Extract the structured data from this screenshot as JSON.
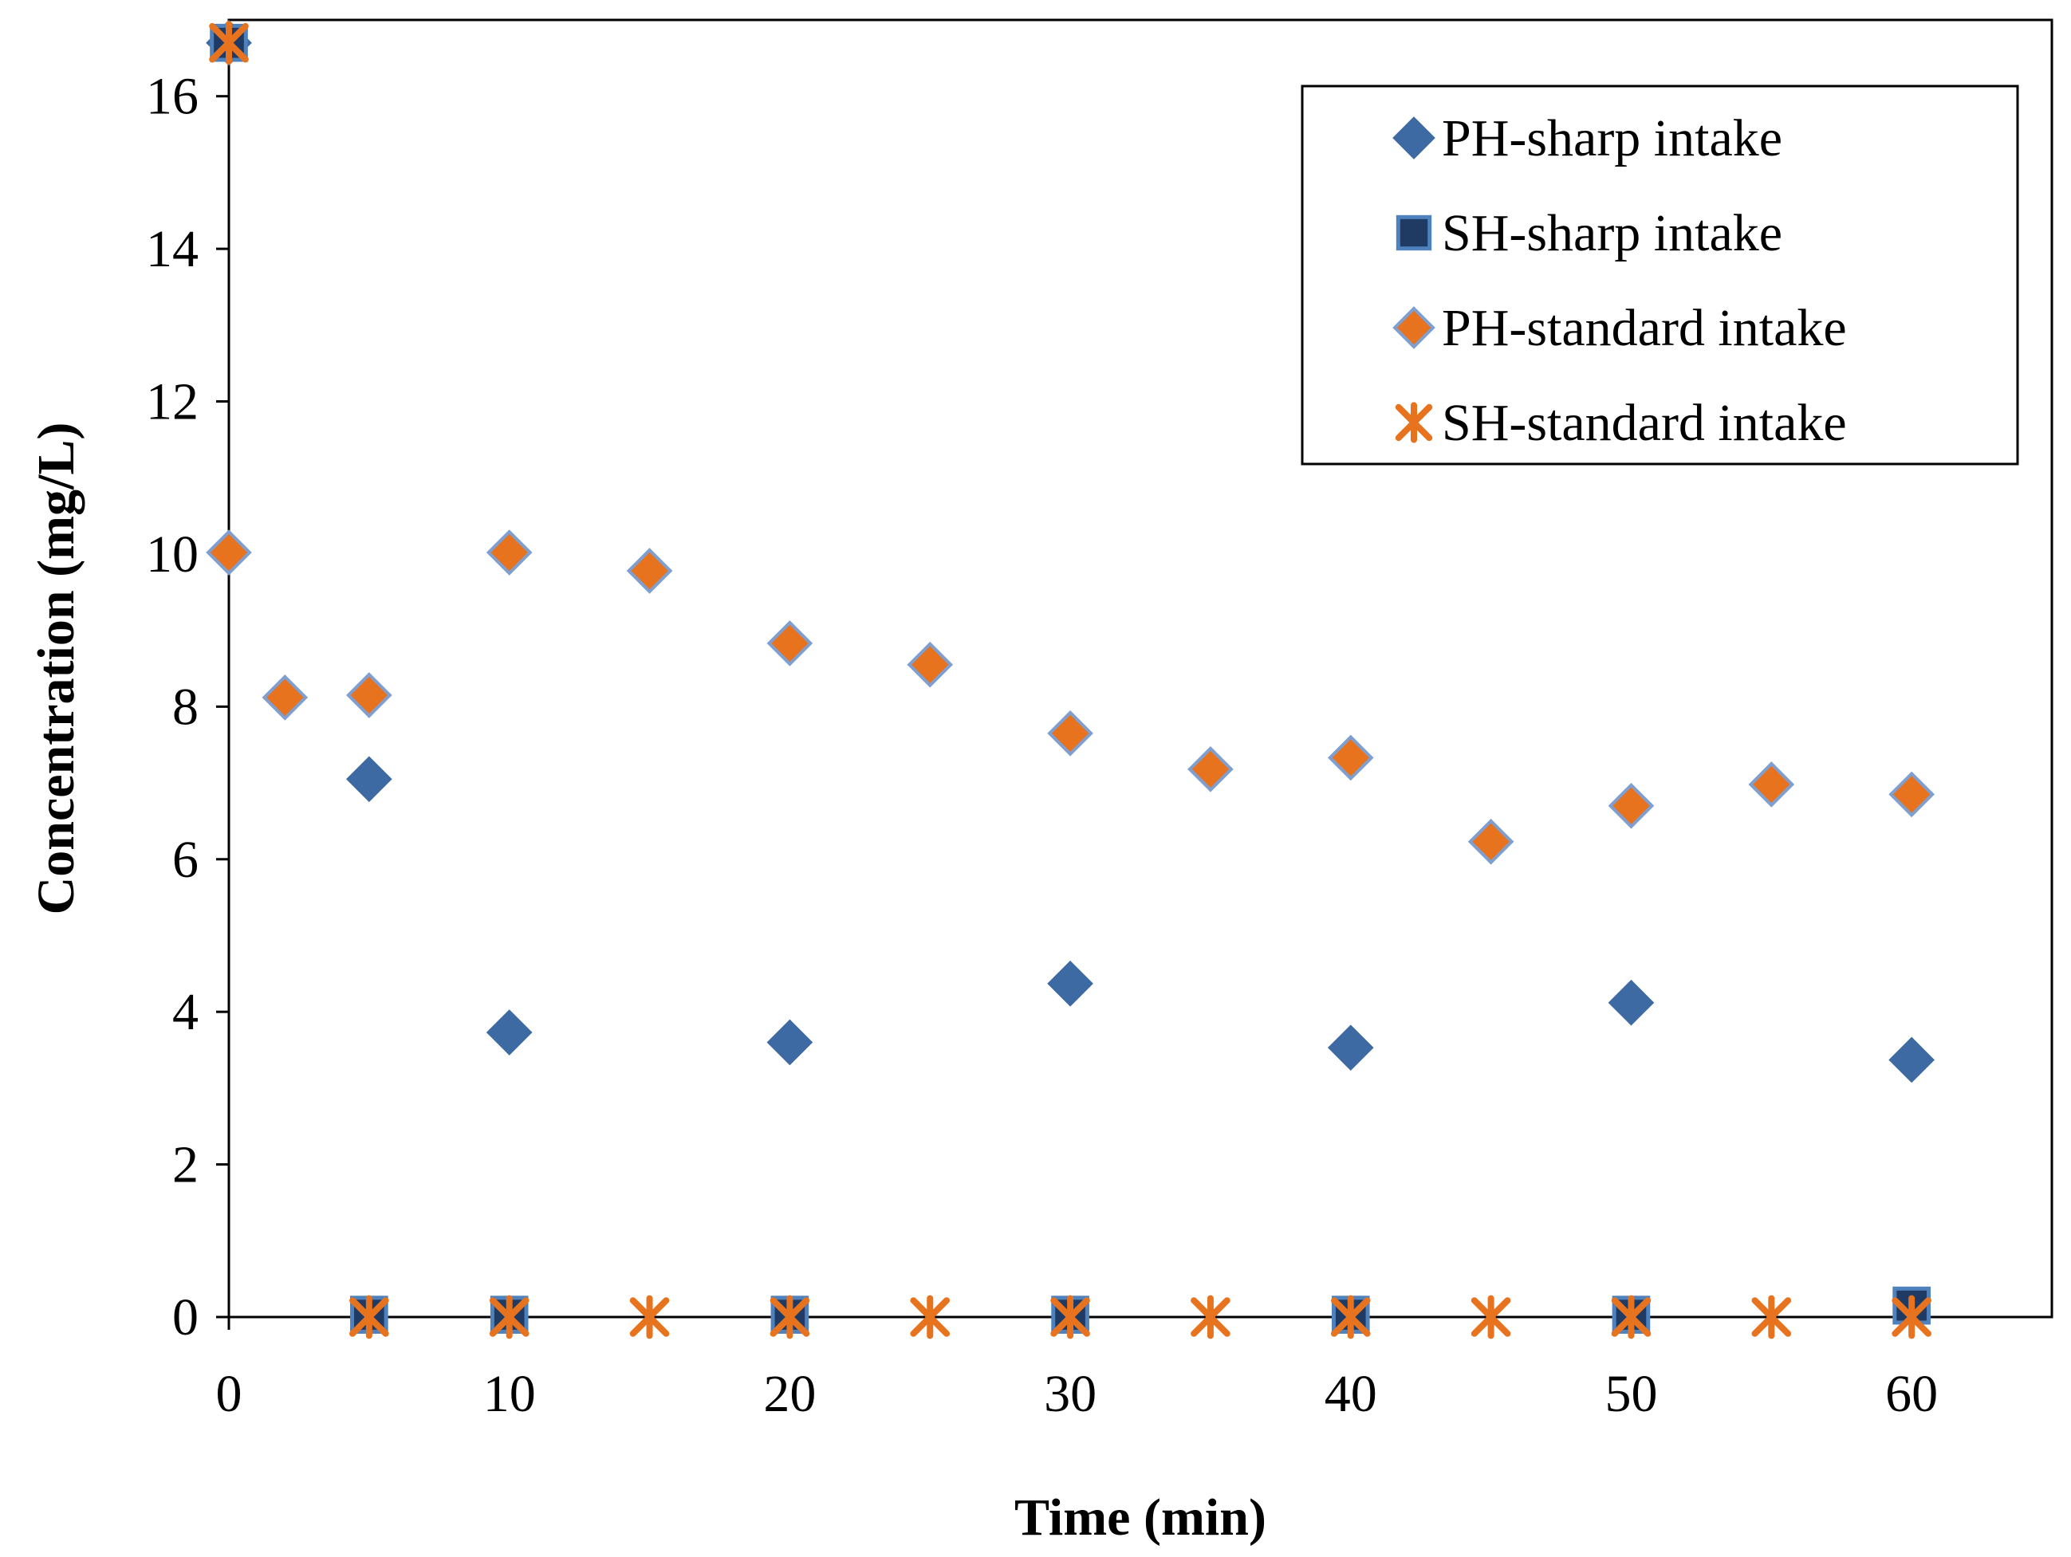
{
  "chart_data": {
    "type": "scatter",
    "xlabel": "Time (min)",
    "ylabel": "Concentration (mg/L)",
    "xlim": [
      0,
      65
    ],
    "ylim": [
      0,
      17
    ],
    "xticks": [
      0,
      10,
      20,
      30,
      40,
      50,
      60
    ],
    "yticks": [
      0,
      2,
      4,
      6,
      8,
      10,
      12,
      14,
      16
    ],
    "grid": false,
    "legend_position": "top-right",
    "series": [
      {
        "name": "PH-sharp intake",
        "marker": "diamond",
        "fill": "#3d6aa3",
        "stroke": "#3d6aa3",
        "points": [
          [
            0,
            16.7
          ],
          [
            5,
            7.05
          ],
          [
            10,
            3.73
          ],
          [
            20,
            3.6
          ],
          [
            30,
            4.37
          ],
          [
            40,
            3.53
          ],
          [
            50,
            4.12
          ],
          [
            60,
            3.37
          ]
        ]
      },
      {
        "name": "SH-sharp intake",
        "marker": "square",
        "fill": "#1f3b63",
        "stroke": "#4f81bd",
        "points": [
          [
            0,
            16.7
          ],
          [
            5,
            0.03
          ],
          [
            10,
            0.03
          ],
          [
            20,
            0.03
          ],
          [
            30,
            0.03
          ],
          [
            40,
            0.03
          ],
          [
            50,
            0.03
          ],
          [
            60,
            0.15
          ]
        ]
      },
      {
        "name": "PH-standard intake",
        "marker": "diamond",
        "fill": "#e8731f",
        "stroke": "#7f9fd0",
        "points": [
          [
            0,
            10.02
          ],
          [
            2,
            8.12
          ],
          [
            5,
            8.15
          ],
          [
            10,
            10.02
          ],
          [
            15,
            9.78
          ],
          [
            20,
            8.83
          ],
          [
            25,
            8.55
          ],
          [
            30,
            7.65
          ],
          [
            35,
            7.18
          ],
          [
            40,
            7.33
          ],
          [
            45,
            6.23
          ],
          [
            50,
            6.7
          ],
          [
            55,
            6.98
          ],
          [
            60,
            6.85
          ]
        ]
      },
      {
        "name": "SH-standard intake",
        "marker": "asterisk",
        "fill": "#e8731f",
        "stroke": "#e8731f",
        "points": [
          [
            0,
            16.7
          ],
          [
            5,
            0.0
          ],
          [
            10,
            0.0
          ],
          [
            15,
            0.0
          ],
          [
            20,
            0.0
          ],
          [
            25,
            0.0
          ],
          [
            30,
            0.0
          ],
          [
            35,
            0.0
          ],
          [
            40,
            0.0
          ],
          [
            45,
            0.0
          ],
          [
            50,
            0.0
          ],
          [
            55,
            0.0
          ],
          [
            60,
            0.0
          ]
        ]
      }
    ]
  }
}
